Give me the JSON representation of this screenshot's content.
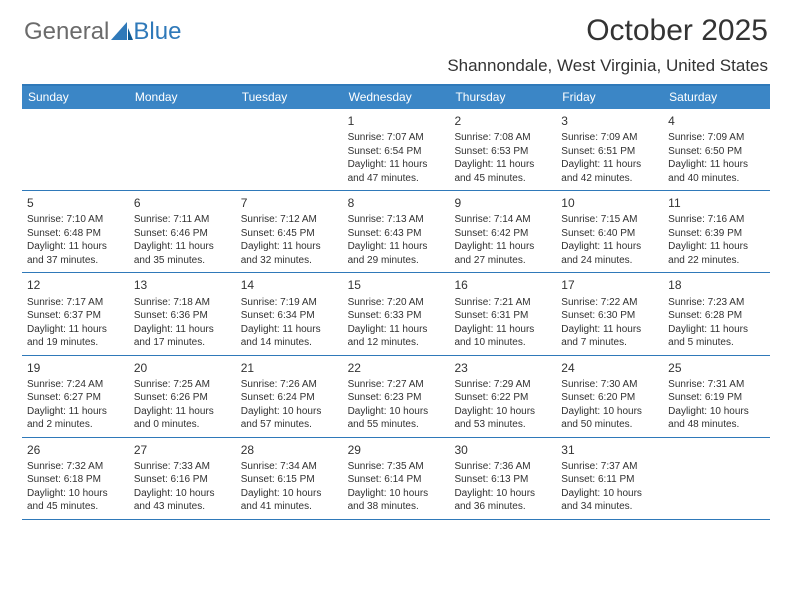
{
  "logo": {
    "general": "General",
    "blue": "Blue"
  },
  "title": "October 2025",
  "location": "Shannondale, West Virginia, United States",
  "colors": {
    "header_bg": "#3b86c6",
    "divider": "#2f79b9",
    "text": "#333333",
    "body_bg": "#ffffff"
  },
  "day_headers": [
    "Sunday",
    "Monday",
    "Tuesday",
    "Wednesday",
    "Thursday",
    "Friday",
    "Saturday"
  ],
  "weeks": [
    [
      {
        "num": "",
        "sunrise": "",
        "sunset": "",
        "daylight": ""
      },
      {
        "num": "",
        "sunrise": "",
        "sunset": "",
        "daylight": ""
      },
      {
        "num": "",
        "sunrise": "",
        "sunset": "",
        "daylight": ""
      },
      {
        "num": "1",
        "sunrise": "Sunrise: 7:07 AM",
        "sunset": "Sunset: 6:54 PM",
        "daylight": "Daylight: 11 hours and 47 minutes."
      },
      {
        "num": "2",
        "sunrise": "Sunrise: 7:08 AM",
        "sunset": "Sunset: 6:53 PM",
        "daylight": "Daylight: 11 hours and 45 minutes."
      },
      {
        "num": "3",
        "sunrise": "Sunrise: 7:09 AM",
        "sunset": "Sunset: 6:51 PM",
        "daylight": "Daylight: 11 hours and 42 minutes."
      },
      {
        "num": "4",
        "sunrise": "Sunrise: 7:09 AM",
        "sunset": "Sunset: 6:50 PM",
        "daylight": "Daylight: 11 hours and 40 minutes."
      }
    ],
    [
      {
        "num": "5",
        "sunrise": "Sunrise: 7:10 AM",
        "sunset": "Sunset: 6:48 PM",
        "daylight": "Daylight: 11 hours and 37 minutes."
      },
      {
        "num": "6",
        "sunrise": "Sunrise: 7:11 AM",
        "sunset": "Sunset: 6:46 PM",
        "daylight": "Daylight: 11 hours and 35 minutes."
      },
      {
        "num": "7",
        "sunrise": "Sunrise: 7:12 AM",
        "sunset": "Sunset: 6:45 PM",
        "daylight": "Daylight: 11 hours and 32 minutes."
      },
      {
        "num": "8",
        "sunrise": "Sunrise: 7:13 AM",
        "sunset": "Sunset: 6:43 PM",
        "daylight": "Daylight: 11 hours and 29 minutes."
      },
      {
        "num": "9",
        "sunrise": "Sunrise: 7:14 AM",
        "sunset": "Sunset: 6:42 PM",
        "daylight": "Daylight: 11 hours and 27 minutes."
      },
      {
        "num": "10",
        "sunrise": "Sunrise: 7:15 AM",
        "sunset": "Sunset: 6:40 PM",
        "daylight": "Daylight: 11 hours and 24 minutes."
      },
      {
        "num": "11",
        "sunrise": "Sunrise: 7:16 AM",
        "sunset": "Sunset: 6:39 PM",
        "daylight": "Daylight: 11 hours and 22 minutes."
      }
    ],
    [
      {
        "num": "12",
        "sunrise": "Sunrise: 7:17 AM",
        "sunset": "Sunset: 6:37 PM",
        "daylight": "Daylight: 11 hours and 19 minutes."
      },
      {
        "num": "13",
        "sunrise": "Sunrise: 7:18 AM",
        "sunset": "Sunset: 6:36 PM",
        "daylight": "Daylight: 11 hours and 17 minutes."
      },
      {
        "num": "14",
        "sunrise": "Sunrise: 7:19 AM",
        "sunset": "Sunset: 6:34 PM",
        "daylight": "Daylight: 11 hours and 14 minutes."
      },
      {
        "num": "15",
        "sunrise": "Sunrise: 7:20 AM",
        "sunset": "Sunset: 6:33 PM",
        "daylight": "Daylight: 11 hours and 12 minutes."
      },
      {
        "num": "16",
        "sunrise": "Sunrise: 7:21 AM",
        "sunset": "Sunset: 6:31 PM",
        "daylight": "Daylight: 11 hours and 10 minutes."
      },
      {
        "num": "17",
        "sunrise": "Sunrise: 7:22 AM",
        "sunset": "Sunset: 6:30 PM",
        "daylight": "Daylight: 11 hours and 7 minutes."
      },
      {
        "num": "18",
        "sunrise": "Sunrise: 7:23 AM",
        "sunset": "Sunset: 6:28 PM",
        "daylight": "Daylight: 11 hours and 5 minutes."
      }
    ],
    [
      {
        "num": "19",
        "sunrise": "Sunrise: 7:24 AM",
        "sunset": "Sunset: 6:27 PM",
        "daylight": "Daylight: 11 hours and 2 minutes."
      },
      {
        "num": "20",
        "sunrise": "Sunrise: 7:25 AM",
        "sunset": "Sunset: 6:26 PM",
        "daylight": "Daylight: 11 hours and 0 minutes."
      },
      {
        "num": "21",
        "sunrise": "Sunrise: 7:26 AM",
        "sunset": "Sunset: 6:24 PM",
        "daylight": "Daylight: 10 hours and 57 minutes."
      },
      {
        "num": "22",
        "sunrise": "Sunrise: 7:27 AM",
        "sunset": "Sunset: 6:23 PM",
        "daylight": "Daylight: 10 hours and 55 minutes."
      },
      {
        "num": "23",
        "sunrise": "Sunrise: 7:29 AM",
        "sunset": "Sunset: 6:22 PM",
        "daylight": "Daylight: 10 hours and 53 minutes."
      },
      {
        "num": "24",
        "sunrise": "Sunrise: 7:30 AM",
        "sunset": "Sunset: 6:20 PM",
        "daylight": "Daylight: 10 hours and 50 minutes."
      },
      {
        "num": "25",
        "sunrise": "Sunrise: 7:31 AM",
        "sunset": "Sunset: 6:19 PM",
        "daylight": "Daylight: 10 hours and 48 minutes."
      }
    ],
    [
      {
        "num": "26",
        "sunrise": "Sunrise: 7:32 AM",
        "sunset": "Sunset: 6:18 PM",
        "daylight": "Daylight: 10 hours and 45 minutes."
      },
      {
        "num": "27",
        "sunrise": "Sunrise: 7:33 AM",
        "sunset": "Sunset: 6:16 PM",
        "daylight": "Daylight: 10 hours and 43 minutes."
      },
      {
        "num": "28",
        "sunrise": "Sunrise: 7:34 AM",
        "sunset": "Sunset: 6:15 PM",
        "daylight": "Daylight: 10 hours and 41 minutes."
      },
      {
        "num": "29",
        "sunrise": "Sunrise: 7:35 AM",
        "sunset": "Sunset: 6:14 PM",
        "daylight": "Daylight: 10 hours and 38 minutes."
      },
      {
        "num": "30",
        "sunrise": "Sunrise: 7:36 AM",
        "sunset": "Sunset: 6:13 PM",
        "daylight": "Daylight: 10 hours and 36 minutes."
      },
      {
        "num": "31",
        "sunrise": "Sunrise: 7:37 AM",
        "sunset": "Sunset: 6:11 PM",
        "daylight": "Daylight: 10 hours and 34 minutes."
      },
      {
        "num": "",
        "sunrise": "",
        "sunset": "",
        "daylight": ""
      }
    ]
  ]
}
